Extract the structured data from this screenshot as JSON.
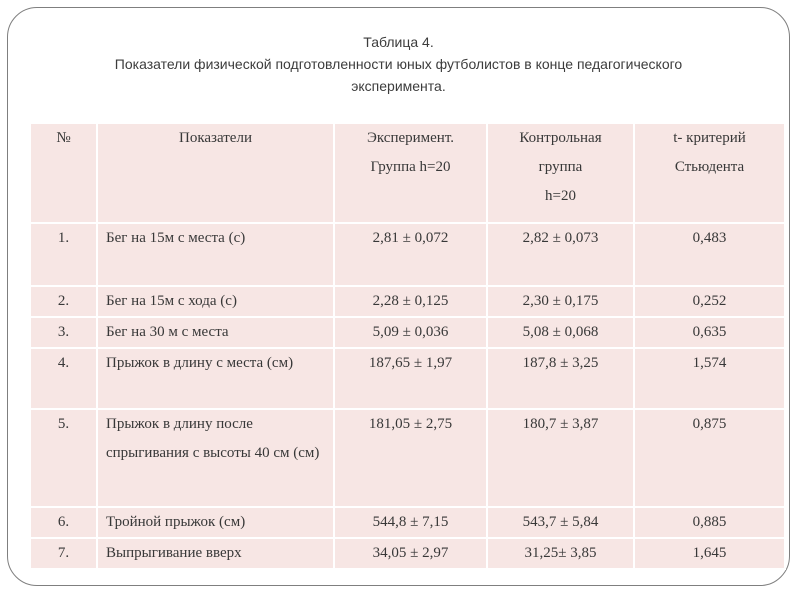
{
  "slide": {
    "title_line1": "Таблица 4.",
    "title_line2": "Показатели физической подготовленности юных футболистов в конце педагогического эксперимента."
  },
  "table": {
    "columns": [
      {
        "line1": "№",
        "line2": ""
      },
      {
        "line1": "Показатели",
        "line2": ""
      },
      {
        "line1": "Эксперимент.",
        "line2": "Группа h=20"
      },
      {
        "line1": "Контрольная группа",
        "line2": "h=20"
      },
      {
        "line1": "t- критерий",
        "line2": "Стьюдента"
      }
    ],
    "rows": [
      {
        "num": "1.",
        "indicator": "Бег на 15м с места (с)",
        "experimental": "2,81 ± 0,072",
        "control": "2,82 ± 0,073",
        "t": "0,483"
      },
      {
        "num": "2.",
        "indicator": "Бег на 15м с хода (с)",
        "experimental": "2,28 ± 0,125",
        "control": "2,30 ± 0,175",
        "t": "0,252"
      },
      {
        "num": "3.",
        "indicator": "Бег на 30 м с места",
        "experimental": "5,09 ± 0,036",
        "control": "5,08 ± 0,068",
        "t": "0,635"
      },
      {
        "num": "4.",
        "indicator": "Прыжок в длину с места (см)",
        "experimental": "187,65 ± 1,97",
        "control": "187,8 ± 3,25",
        "t": "1,574"
      },
      {
        "num": "5.",
        "indicator": "Прыжок в длину после спрыгивания с высоты 40 см (см)",
        "experimental": "181,05 ± 2,75",
        "control": "180,7 ± 3,87",
        "t": "0,875"
      },
      {
        "num": "6.",
        "indicator": "Тройной прыжок (см)",
        "experimental": "544,8 ± 7,15",
        "control": "543,7 ± 5,84",
        "t": "0,885"
      },
      {
        "num": "7.",
        "indicator": "Выпрыгивание вверх",
        "experimental": "34,05 ± 2,97",
        "control": "31,25± 3,85",
        "t": "1,645"
      }
    ],
    "colors": {
      "cell_background": "#f7e6e4",
      "gridline": "#ffffff",
      "text": "#383838",
      "frame_border": "#7f7f7f"
    }
  }
}
